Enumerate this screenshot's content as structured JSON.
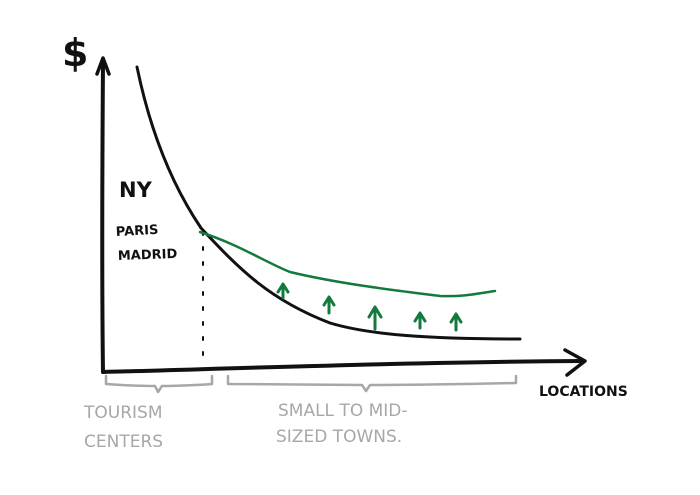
{
  "labels": {
    "y_axis": "$",
    "x_axis": "LOCATIONS",
    "ny": "NY",
    "paris": "PARIS",
    "madrid": "MADRID",
    "tourism_line1": "TOURISM",
    "tourism_line2": "CENTERS",
    "towns_line1": "SMALL TO MID-",
    "towns_line2": "SIZED TOWNS."
  },
  "colors": {
    "ink": "#111111",
    "green": "#137a3e",
    "gray": "#a7a7a7",
    "background": "#ffffff"
  },
  "icons": {
    "up_arrows": [
      "up-arrow-icon",
      "up-arrow-icon",
      "up-arrow-icon",
      "up-arrow-icon",
      "up-arrow-icon"
    ]
  }
}
